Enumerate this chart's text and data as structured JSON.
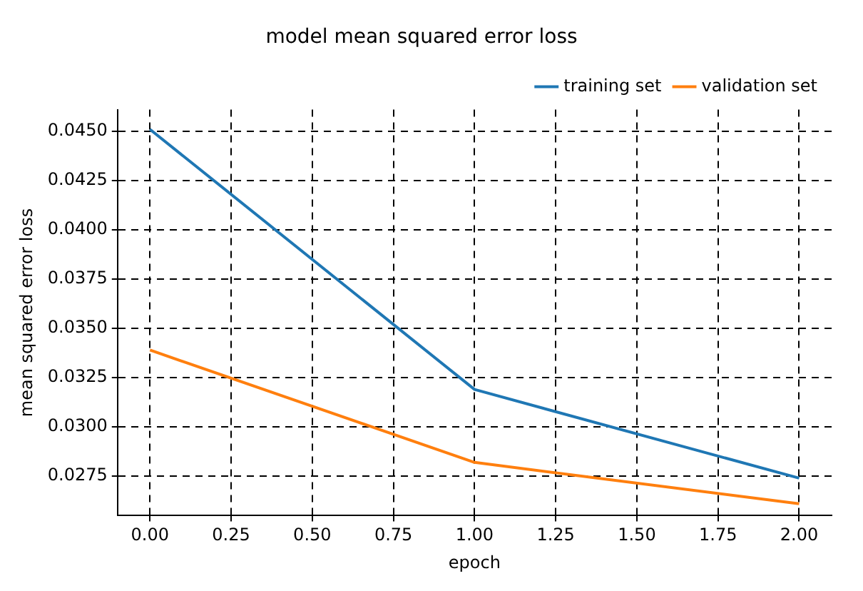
{
  "chart_data": {
    "type": "line",
    "title": "model mean squared error loss",
    "xlabel": "epoch",
    "ylabel": "mean squared error loss",
    "x": [
      0,
      1,
      2
    ],
    "series": [
      {
        "name": "training set",
        "color": "#1f77b4",
        "values": [
          0.0451,
          0.0319,
          0.0274
        ]
      },
      {
        "name": "validation set",
        "color": "#ff7f0e",
        "values": [
          0.0339,
          0.0282,
          0.0261
        ]
      }
    ],
    "xlim": [
      -0.1,
      2.1
    ],
    "xticks": [
      {
        "value": 0,
        "label": "0.00"
      },
      {
        "value": 0.25,
        "label": "0.25"
      },
      {
        "value": 0.5,
        "label": "0.50"
      },
      {
        "value": 0.75,
        "label": "0.75"
      },
      {
        "value": 1,
        "label": "1.00"
      },
      {
        "value": 1.25,
        "label": "1.25"
      },
      {
        "value": 1.5,
        "label": "1.50"
      },
      {
        "value": 1.75,
        "label": "1.75"
      },
      {
        "value": 2,
        "label": "2.00"
      }
    ],
    "ylim": [
      0.0255,
      0.0461
    ],
    "yticks": [
      {
        "value": 0.0275,
        "label": "0.0275"
      },
      {
        "value": 0.03,
        "label": "0.0300"
      },
      {
        "value": 0.0325,
        "label": "0.0325"
      },
      {
        "value": 0.035,
        "label": "0.0350"
      },
      {
        "value": 0.0375,
        "label": "0.0375"
      },
      {
        "value": 0.04,
        "label": "0.0400"
      },
      {
        "value": 0.0425,
        "label": "0.0425"
      },
      {
        "value": 0.045,
        "label": "0.0450"
      }
    ],
    "grid": true,
    "line_style": "solid",
    "legend": "top right"
  }
}
